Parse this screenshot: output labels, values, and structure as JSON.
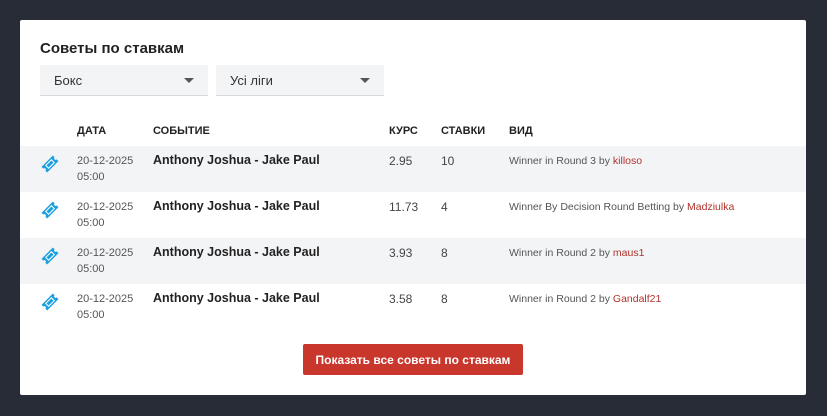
{
  "title": "Советы по ставкам",
  "filters": {
    "sport": "Бокс",
    "league": "Усі ліги"
  },
  "columns": {
    "date": "ДАТА",
    "event": "СОБЫТИЕ",
    "odds": "КУРС",
    "bets": "СТАВКИ",
    "kind": "ВИД"
  },
  "rows": [
    {
      "date": "20-12-2025",
      "time": "05:00",
      "event": "Anthony Joshua - Jake Paul",
      "odds": "2.95",
      "bets": "10",
      "kind": "Winner in Round 3 by",
      "user": "killoso",
      "icon": "ticket-icon"
    },
    {
      "date": "20-12-2025",
      "time": "05:00",
      "event": "Anthony Joshua - Jake Paul",
      "odds": "11.73",
      "bets": "4",
      "kind": "Winner By Decision Round Betting by",
      "user": "Madziulka",
      "icon": "ticket-icon"
    },
    {
      "date": "20-12-2025",
      "time": "05:00",
      "event": "Anthony Joshua - Jake Paul",
      "odds": "3.93",
      "bets": "8",
      "kind": "Winner in Round 2 by",
      "user": "maus1",
      "icon": "ticket-icon"
    },
    {
      "date": "20-12-2025",
      "time": "05:00",
      "event": "Anthony Joshua - Jake Paul",
      "odds": "3.58",
      "bets": "8",
      "kind": "Winner in Round 2 by",
      "user": "Gandalf21",
      "icon": "ticket-icon"
    }
  ],
  "show_all_label": "Показать все советы по ставкам",
  "colors": {
    "accent": "#c9362c",
    "icon": "#1ea0e0",
    "link": "#b0322b"
  }
}
